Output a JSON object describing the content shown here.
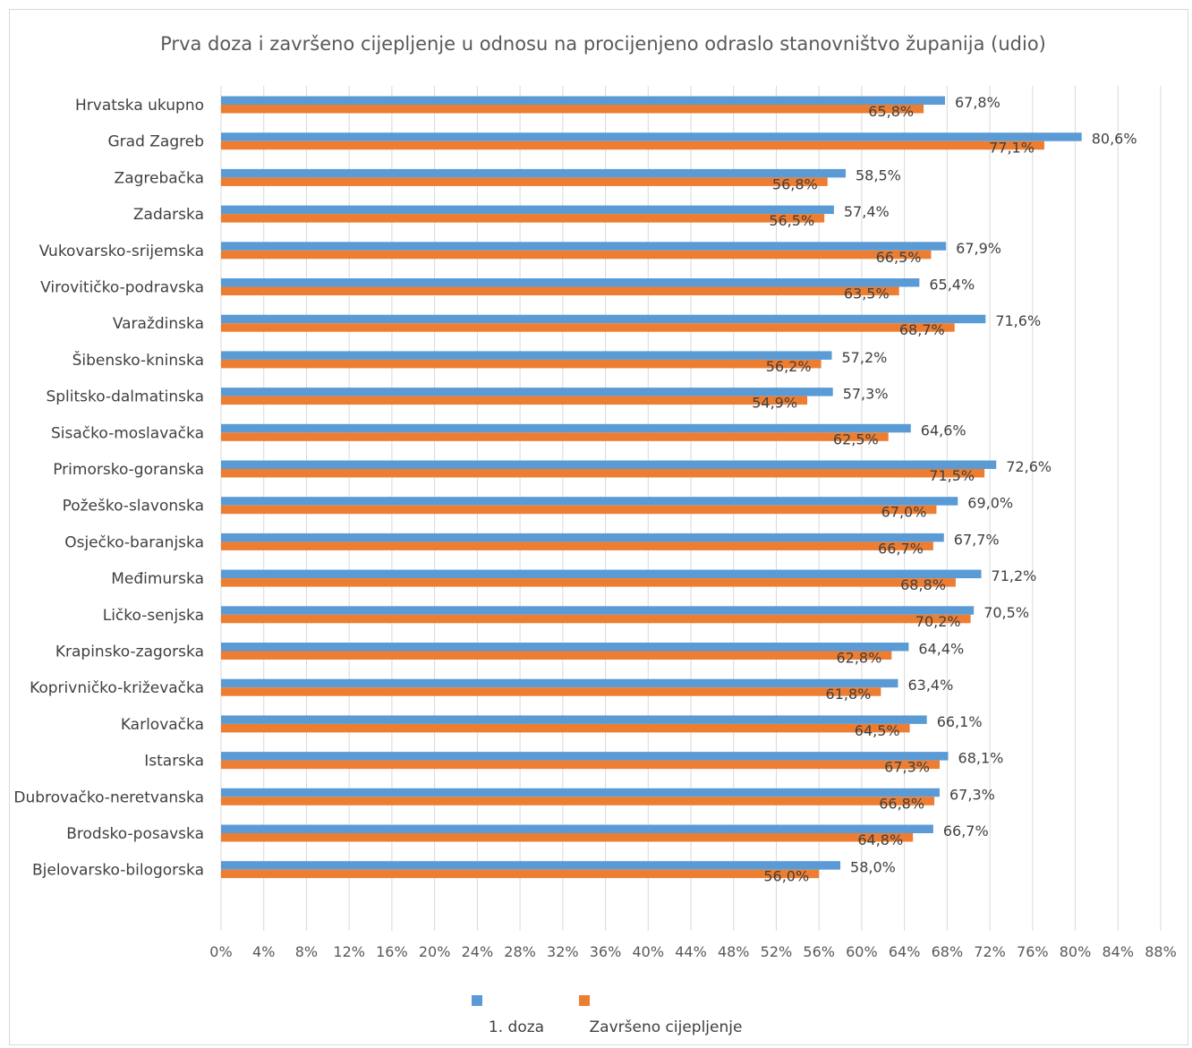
{
  "chart_data": {
    "type": "bar",
    "orientation": "horizontal",
    "title": "Prva doza i završeno cijepljenje u odnosu na procijenjeno odraslo stanovništvo županija (udio)",
    "categories": [
      "Hrvatska ukupno",
      "Grad Zagreb",
      "Zagrebačka",
      "Zadarska",
      "Vukovarsko-srijemska",
      "Virovitičko-podravska",
      "Varaždinska",
      "Šibensko-kninska",
      "Splitsko-dalmatinska",
      "Sisačko-moslavačka",
      "Primorsko-goranska",
      "Požeško-slavonska",
      "Osječko-baranjska",
      "Međimurska",
      "Ličko-senjska",
      "Krapinsko-zagorska",
      "Koprivničko-križevačka",
      "Karlovačka",
      "Istarska",
      "Dubrovačko-neretvanska",
      "Brodsko-posavska",
      "Bjelovarsko-bilogorska"
    ],
    "series": [
      {
        "name": "1. doza",
        "color": "#5b9bd5",
        "values": [
          67.8,
          80.6,
          58.5,
          57.4,
          67.9,
          65.4,
          71.6,
          57.2,
          57.3,
          64.6,
          72.6,
          69.0,
          67.7,
          71.2,
          70.5,
          64.4,
          63.4,
          66.1,
          68.1,
          67.3,
          66.7,
          58.0
        ],
        "labels": [
          "67,8%",
          "80,6%",
          "58,5%",
          "57,4%",
          "67,9%",
          "65,4%",
          "71,6%",
          "57,2%",
          "57,3%",
          "64,6%",
          "72,6%",
          "69,0%",
          "67,7%",
          "71,2%",
          "70,5%",
          "64,4%",
          "63,4%",
          "66,1%",
          "68,1%",
          "67,3%",
          "66,7%",
          "58,0%"
        ]
      },
      {
        "name": "Završeno cijepljenje",
        "color": "#ed7d31",
        "values": [
          65.8,
          77.1,
          56.8,
          56.5,
          66.5,
          63.5,
          68.7,
          56.2,
          54.9,
          62.5,
          71.5,
          67.0,
          66.7,
          68.8,
          70.2,
          62.8,
          61.8,
          64.5,
          67.3,
          66.8,
          64.8,
          56.0
        ],
        "labels": [
          "65,8%",
          "77,1%",
          "56,8%",
          "56,5%",
          "66,5%",
          "63,5%",
          "68,7%",
          "56,2%",
          "54,9%",
          "62,5%",
          "71,5%",
          "67,0%",
          "66,7%",
          "68,8%",
          "70,2%",
          "62,8%",
          "61,8%",
          "64,5%",
          "67,3%",
          "66,8%",
          "64,8%",
          "56,0%"
        ]
      }
    ],
    "xlim": [
      0,
      88
    ],
    "xticks": [
      0,
      4,
      8,
      12,
      16,
      20,
      24,
      28,
      32,
      36,
      40,
      44,
      48,
      52,
      56,
      60,
      64,
      68,
      72,
      76,
      80,
      84,
      88
    ],
    "xtick_labels": [
      "0%",
      "4%",
      "8%",
      "12%",
      "16%",
      "20%",
      "24%",
      "28%",
      "32%",
      "36%",
      "40%",
      "44%",
      "48%",
      "52%",
      "56%",
      "60%",
      "64%",
      "68%",
      "72%",
      "76%",
      "80%",
      "84%",
      "88%"
    ],
    "grid": "vertical",
    "legend_position": "bottom"
  }
}
